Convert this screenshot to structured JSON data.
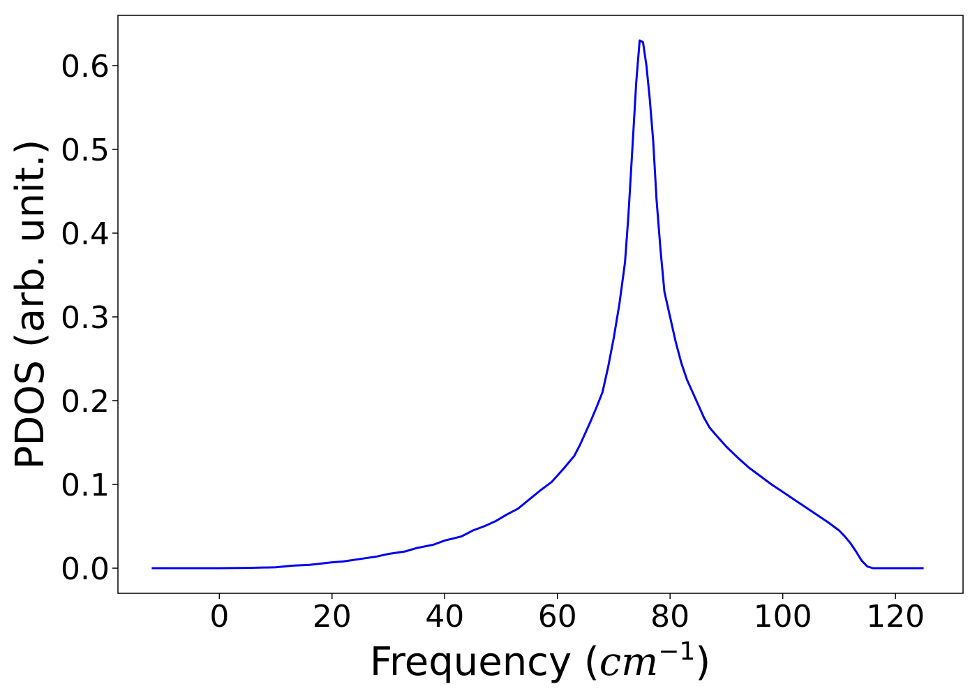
{
  "chart_data": {
    "type": "line",
    "xlabel_prefix": "Frequency (",
    "xlabel_unit": "cm",
    "xlabel_exp": "−1",
    "xlabel_suffix": ")",
    "ylabel": "PDOS (arb. unit.)",
    "xlim": [
      -18,
      132
    ],
    "ylim": [
      -0.03,
      0.66
    ],
    "xticks": [
      0,
      20,
      40,
      60,
      80,
      100,
      120
    ],
    "xtick_labels": [
      "0",
      "20",
      "40",
      "60",
      "80",
      "100",
      "120"
    ],
    "yticks": [
      0.0,
      0.1,
      0.2,
      0.3,
      0.4,
      0.5,
      0.6
    ],
    "ytick_labels": [
      "0.0",
      "0.1",
      "0.2",
      "0.3",
      "0.4",
      "0.5",
      "0.6"
    ],
    "grid": false,
    "line_color": "#0000ee",
    "series": [
      {
        "x": [
          -12,
          -5,
          0,
          5,
          10,
          13,
          16,
          20,
          22,
          25,
          28,
          30,
          33,
          35,
          38,
          40,
          43,
          45,
          47,
          49,
          51,
          53,
          55,
          57,
          59,
          61,
          63,
          64,
          65,
          66,
          67,
          68,
          69,
          70,
          71,
          72,
          72.6,
          73.3,
          74,
          74.6,
          75.2,
          75.8,
          76.4,
          77,
          77.6,
          78.3,
          79,
          80,
          81,
          82,
          83,
          84,
          85,
          86,
          87,
          88,
          90,
          92,
          94,
          96,
          98,
          100,
          102,
          104,
          106,
          108,
          110,
          111,
          112,
          113,
          114,
          115,
          116,
          118,
          120,
          122,
          125
        ],
        "y": [
          0.0,
          0.0,
          0.0,
          0.0003,
          0.001,
          0.003,
          0.004,
          0.007,
          0.008,
          0.011,
          0.014,
          0.017,
          0.02,
          0.024,
          0.028,
          0.033,
          0.038,
          0.045,
          0.05,
          0.056,
          0.064,
          0.071,
          0.082,
          0.093,
          0.103,
          0.118,
          0.134,
          0.147,
          0.162,
          0.177,
          0.193,
          0.21,
          0.24,
          0.275,
          0.315,
          0.365,
          0.42,
          0.5,
          0.58,
          0.63,
          0.628,
          0.6,
          0.56,
          0.51,
          0.44,
          0.38,
          0.33,
          0.3,
          0.27,
          0.245,
          0.225,
          0.21,
          0.195,
          0.18,
          0.168,
          0.16,
          0.145,
          0.132,
          0.12,
          0.11,
          0.1,
          0.091,
          0.082,
          0.073,
          0.064,
          0.055,
          0.045,
          0.038,
          0.03,
          0.02,
          0.009,
          0.002,
          0.0,
          0.0,
          0.0,
          0.0,
          0.0
        ]
      }
    ]
  }
}
